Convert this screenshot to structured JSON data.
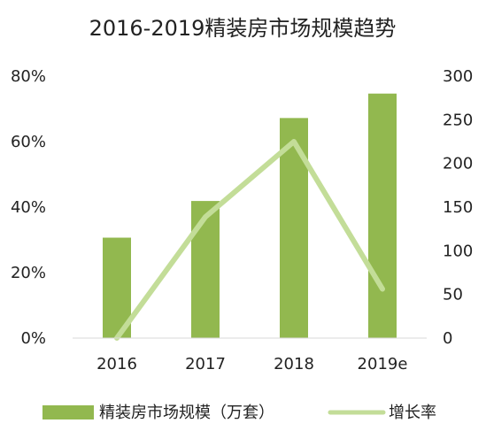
{
  "chart_data": {
    "type": "bar+line",
    "title": "2016-2019精装房市场规模趋势",
    "categories": [
      "2016",
      "2017",
      "2018",
      "2019e"
    ],
    "series": [
      {
        "name": "精装房市场规模（万套）",
        "type": "bar",
        "axis": "right",
        "values": [
          115,
          157,
          252,
          280
        ],
        "color": "#92b84f"
      },
      {
        "name": "增长率",
        "type": "line",
        "axis": "left",
        "values": [
          0.0,
          0.37,
          0.6,
          0.15
        ],
        "color": "#c3dd98"
      }
    ],
    "left_axis": {
      "ticks": [
        "0%",
        "20%",
        "40%",
        "60%",
        "80%"
      ],
      "ylim": [
        0,
        0.8
      ]
    },
    "right_axis": {
      "ticks": [
        "0",
        "50",
        "100",
        "150",
        "200",
        "250",
        "300"
      ],
      "ylim": [
        0,
        300
      ]
    },
    "grid": false,
    "legend_position": "bottom"
  }
}
